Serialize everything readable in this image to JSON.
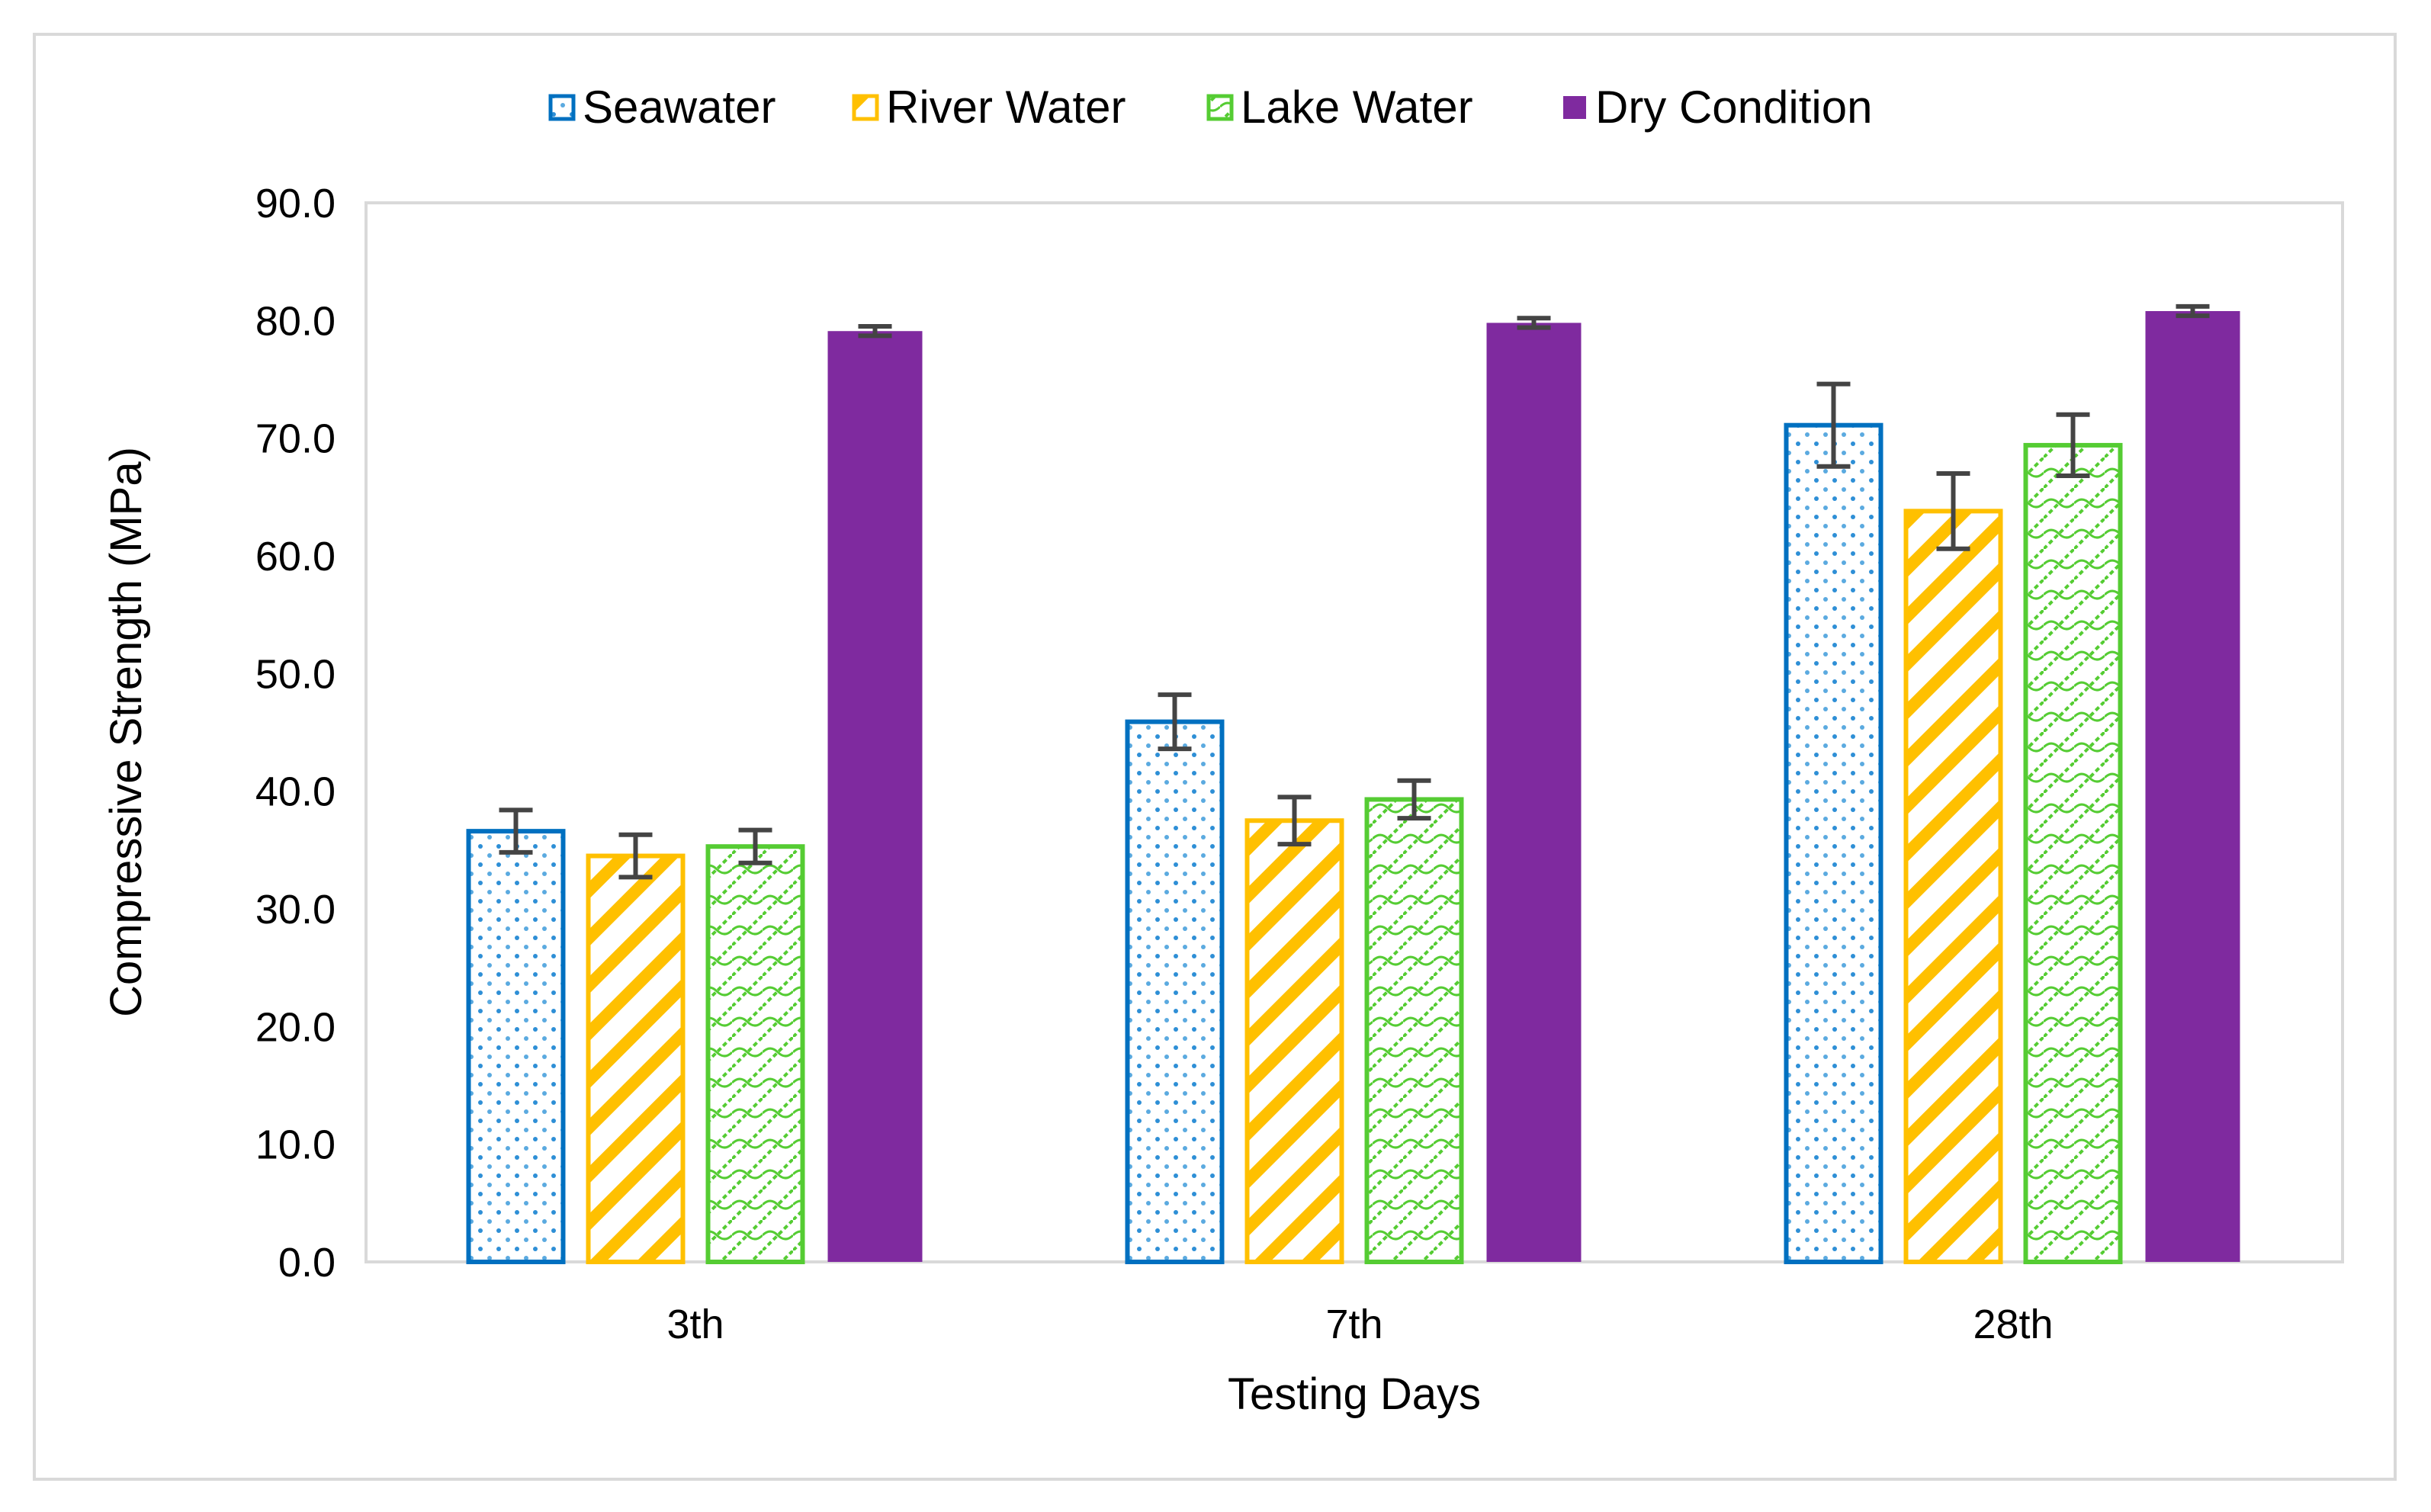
{
  "chart_data": {
    "type": "bar",
    "title": "",
    "xlabel": "Testing Days",
    "ylabel": "Compressive Strength (MPa)",
    "ylim": [
      0,
      90
    ],
    "yticks": [
      "0.0",
      "10.0",
      "20.0",
      "30.0",
      "40.0",
      "50.0",
      "60.0",
      "70.0",
      "80.0",
      "90.0"
    ],
    "ytick_values": [
      0,
      10,
      20,
      30,
      40,
      50,
      60,
      70,
      80,
      90
    ],
    "grid": false,
    "legend_position": "top-center",
    "categories": [
      "3th",
      "7th",
      "28th"
    ],
    "series": [
      {
        "name": "Seawater",
        "color": "#0070C0",
        "pattern": "dots",
        "values": [
          36.6,
          45.9,
          71.1
        ],
        "errors": [
          1.8,
          2.3,
          3.5
        ]
      },
      {
        "name": "River Water",
        "color": "#FFC000",
        "pattern": "diagonal-stripes",
        "values": [
          34.5,
          37.5,
          63.8
        ],
        "errors": [
          1.8,
          2.0,
          3.2
        ]
      },
      {
        "name": "Lake Water",
        "color": "#55CC33",
        "pattern": "lattice",
        "values": [
          35.3,
          39.3,
          69.4
        ],
        "errors": [
          1.4,
          1.6,
          2.6
        ]
      },
      {
        "name": "Dry Condition",
        "color": "#7F2A9F",
        "pattern": "solid",
        "values": [
          79.1,
          79.8,
          80.8
        ],
        "errors": [
          0.4,
          0.4,
          0.4
        ]
      }
    ]
  }
}
